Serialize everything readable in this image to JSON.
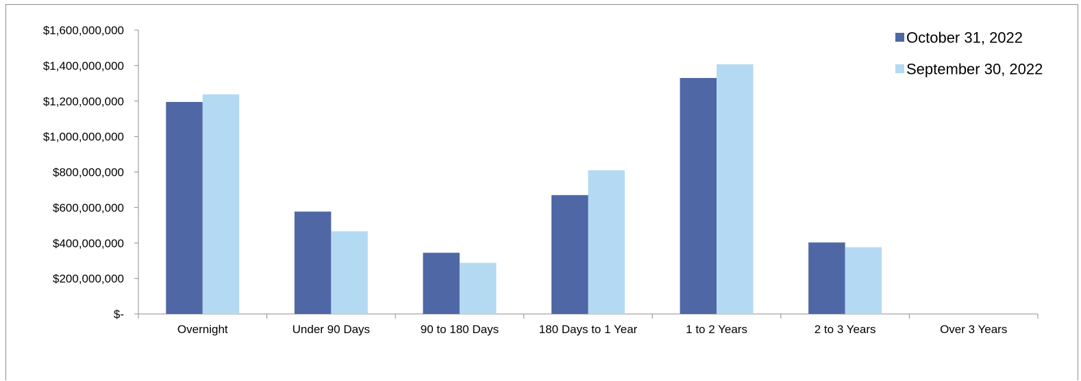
{
  "chart_data": {
    "type": "bar",
    "title": "",
    "xlabel": "",
    "ylabel": "",
    "categories": [
      "Overnight",
      "Under 90 Days",
      "90 to 180 Days",
      "180 Days to 1 Year",
      "1 to 2 Years",
      "2 to 3 Years",
      "Over 3 Years"
    ],
    "series": [
      {
        "name": "October 31, 2022",
        "color": "#4f67a5",
        "values": [
          1195000000,
          577000000,
          345000000,
          670000000,
          1330000000,
          403000000,
          0
        ]
      },
      {
        "name": "September 30, 2022",
        "color": "#b4d9f2",
        "values": [
          1238000000,
          466000000,
          288000000,
          810000000,
          1407000000,
          376000000,
          0
        ]
      }
    ],
    "ylim": [
      0,
      1600000000
    ],
    "yticks": [
      0,
      200000000,
      400000000,
      600000000,
      800000000,
      1000000000,
      1200000000,
      1400000000,
      1600000000
    ],
    "ytick_labels": [
      "$-",
      "$200,000,000",
      "$400,000,000",
      "$600,000,000",
      "$800,000,000",
      "$1,000,000,000",
      "$1,200,000,000",
      "$1,400,000,000",
      "$1,600,000,000"
    ],
    "grid": false,
    "legend_position": "top-right"
  }
}
